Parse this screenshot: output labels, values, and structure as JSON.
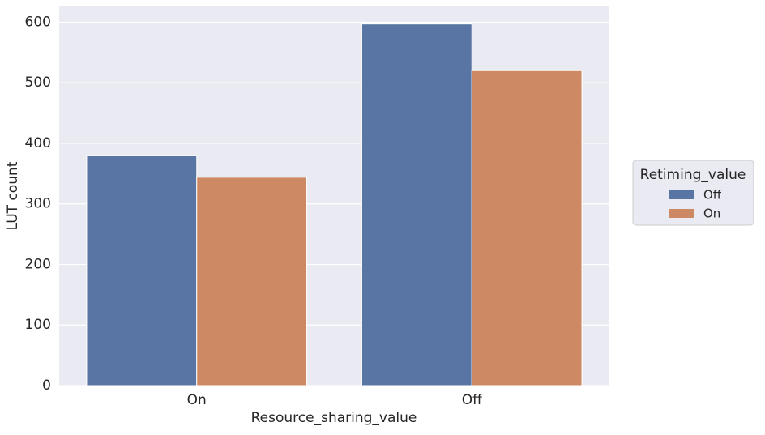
{
  "chart_data": {
    "type": "bar",
    "xlabel": "Resource_sharing_value",
    "ylabel": "LUT count",
    "categories": [
      "On",
      "Off"
    ],
    "series": [
      {
        "name": "Off",
        "color": "#5975a4",
        "values": [
          380,
          597
        ]
      },
      {
        "name": "On",
        "color": "#cc8963",
        "values": [
          344,
          520
        ]
      }
    ],
    "legend_title": "Retiming_value",
    "legend_position": "right",
    "ylim": [
      0,
      626
    ],
    "yticks": [
      0,
      100,
      200,
      300,
      400,
      500,
      600
    ],
    "grid": true
  }
}
